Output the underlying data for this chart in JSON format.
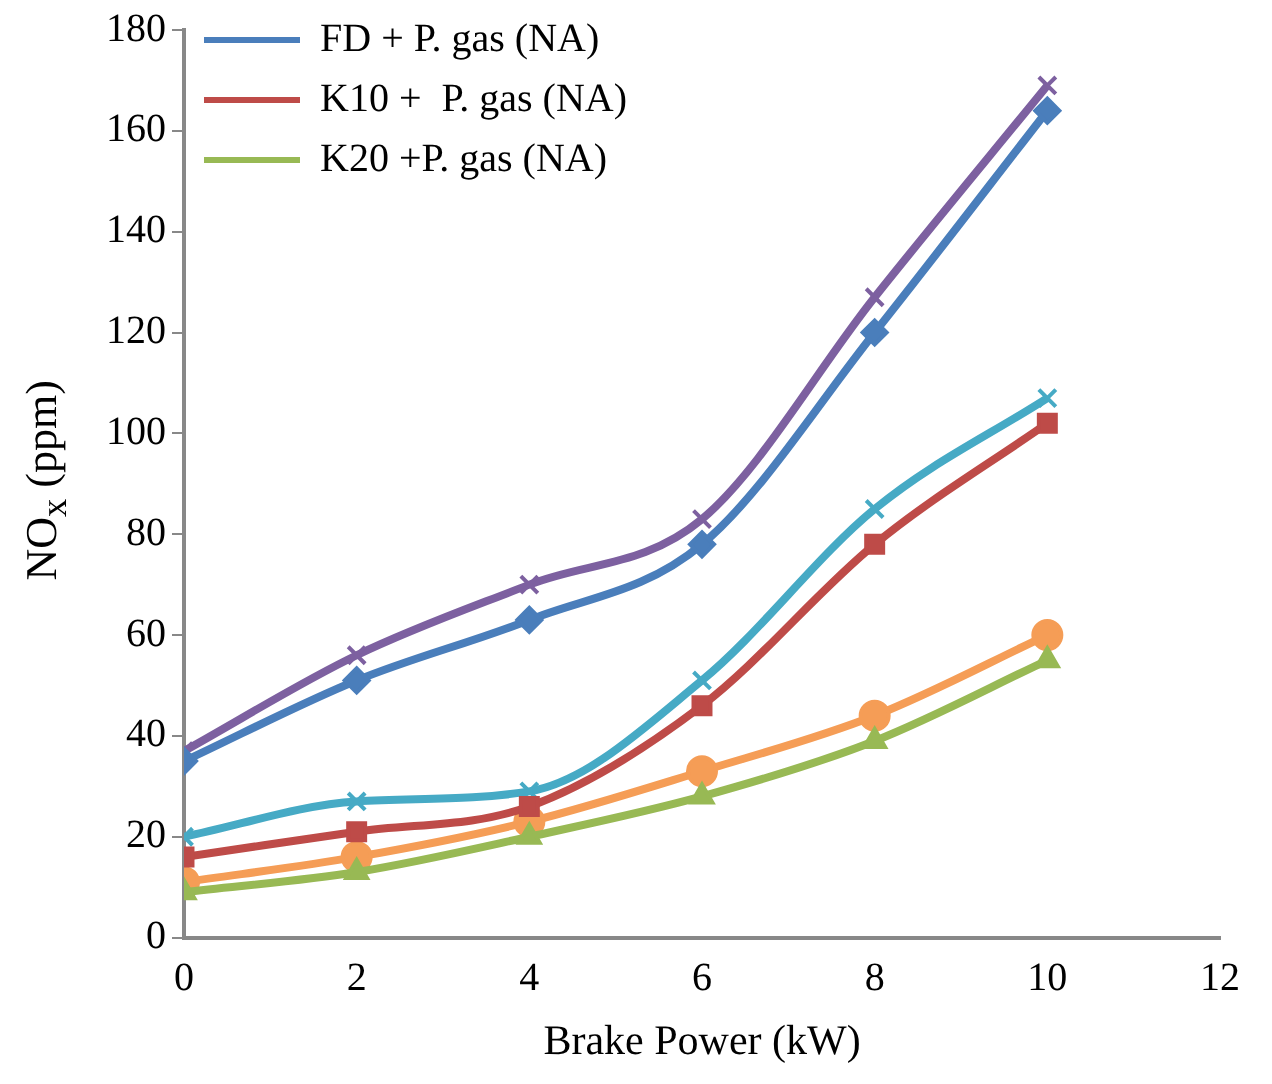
{
  "chart_data": {
    "type": "line",
    "xlabel": "Brake Power (kW)",
    "ylabel": "NO$_{x}$ (ppm)",
    "x": [
      0,
      2,
      4,
      6,
      8,
      10
    ],
    "xlim": [
      0,
      12
    ],
    "xticks": [
      0,
      2,
      4,
      6,
      8,
      10,
      12
    ],
    "ylim": [
      0,
      180
    ],
    "yticks": [
      0,
      20,
      40,
      60,
      80,
      100,
      120,
      140,
      160,
      180
    ],
    "grid": false,
    "legend": "top left",
    "series": [
      {
        "name": "FD + P. gas (NA)",
        "color": "#4a7ebb",
        "marker": "diamond",
        "values": [
          35,
          51,
          63,
          78,
          120,
          164
        ]
      },
      {
        "name": "K10 +  P. gas (NA)",
        "color": "#be4b48",
        "marker": "square",
        "values": [
          16,
          21,
          26,
          46,
          78,
          102
        ]
      },
      {
        "name": "K20 +P. gas (NA)",
        "color": "#98b954",
        "marker": "triangle",
        "values": [
          9,
          13,
          20,
          28,
          39,
          55
        ]
      },
      {
        "color": "#7d60a0",
        "marker": "cross",
        "values": [
          37,
          56,
          70,
          83,
          127,
          169
        ]
      },
      {
        "color": "#46aac5",
        "marker": "cross",
        "values": [
          20,
          27,
          29,
          51,
          85,
          107
        ]
      },
      {
        "color": "#f59d56",
        "marker": "circle",
        "values": [
          11,
          16,
          23,
          33,
          44,
          60
        ]
      }
    ]
  }
}
